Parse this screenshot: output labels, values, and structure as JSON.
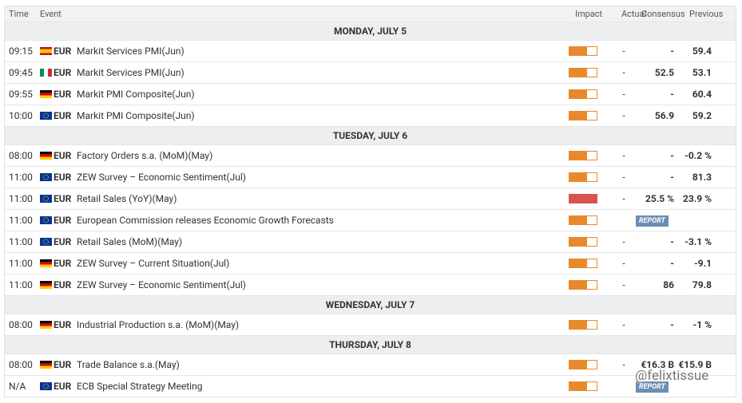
{
  "header": {
    "columns": [
      "Time",
      "Event",
      "Impact",
      "Actual",
      "Consensus",
      "Previous"
    ]
  },
  "days": [
    {
      "title": "MONDAY, JULY 5",
      "events": [
        {
          "time": "09:15",
          "currency": "EUR",
          "event": "Markit Services PMI(Jun)",
          "actual": "-",
          "consensus": "-",
          "previous": "59.4"
        },
        {
          "time": "09:45",
          "currency": "EUR",
          "event": "Markit Services PMI(Jun)",
          "actual": "-",
          "consensus": "52.5",
          "previous": "53.1"
        },
        {
          "time": "09:55",
          "currency": "EUR",
          "event": "Markit PMI Composite(Jun)",
          "actual": "-",
          "consensus": "-",
          "previous": "60.4"
        },
        {
          "time": "10:00",
          "currency": "EUR",
          "event": "Markit PMI Composite(Jun)",
          "actual": "-",
          "consensus": "56.9",
          "previous": "59.2"
        }
      ]
    },
    {
      "title": "TUESDAY, JULY 6",
      "events": [
        {
          "time": "08:00",
          "currency": "EUR",
          "event": "Factory Orders s.a. (MoM)(May)",
          "actual": "-",
          "consensus": "-",
          "previous": "-0.2 %"
        },
        {
          "time": "11:00",
          "currency": "EUR",
          "event": "ZEW Survey – Economic Sentiment(Jul)",
          "actual": "-",
          "consensus": "-",
          "previous": "81.3"
        },
        {
          "time": "11:00",
          "currency": "EUR",
          "event": "Retail Sales (YoY)(May)",
          "actual": "-",
          "consensus": "25.5 %",
          "previous": "23.9 %"
        },
        {
          "time": "11:00",
          "currency": "EUR",
          "event": "European Commission releases Economic Growth Forecasts",
          "report": "REPORT"
        },
        {
          "time": "11:00",
          "currency": "EUR",
          "event": "Retail Sales (MoM)(May)",
          "actual": "-",
          "consensus": "-",
          "previous": "-3.1 %"
        },
        {
          "time": "11:00",
          "currency": "EUR",
          "event": "ZEW Survey – Current Situation(Jul)",
          "actual": "-",
          "consensus": "-",
          "previous": "-9.1"
        },
        {
          "time": "11:00",
          "currency": "EUR",
          "event": "ZEW Survey – Economic Sentiment(Jul)",
          "actual": "-",
          "consensus": "86",
          "previous": "79.8"
        }
      ]
    },
    {
      "title": "WEDNESDAY, JULY 7",
      "events": [
        {
          "time": "08:00",
          "currency": "EUR",
          "event": "Industrial Production s.a. (MoM)(May)",
          "actual": "-",
          "consensus": "-",
          "previous": "-1 %"
        }
      ]
    },
    {
      "title": "THURSDAY, JULY 8",
      "events": [
        {
          "time": "08:00",
          "currency": "EUR",
          "event": "Trade Balance s.a.(May)",
          "actual": "-",
          "consensus": "€16.3 B",
          "previous": "€15.9 B"
        },
        {
          "time": "N/A",
          "currency": "EUR",
          "event": "ECB Special Strategy Meeting",
          "report": "REPORT"
        }
      ]
    }
  ],
  "watermark": "@felixtissue"
}
